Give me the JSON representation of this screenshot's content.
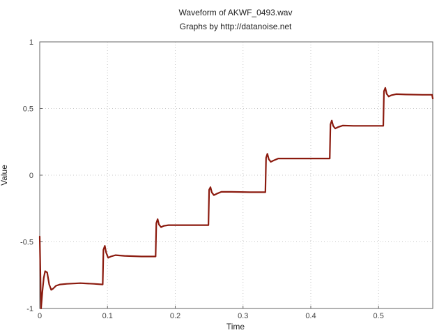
{
  "chart_data": {
    "type": "line",
    "title": "Waveform of AKWF_0493.wav",
    "subtitle": "Graphs by http://datanoise.net",
    "xlabel": "Time",
    "ylabel": "Value",
    "xlim": [
      0,
      0.58
    ],
    "ylim": [
      -1,
      1
    ],
    "grid": true,
    "x_ticks": [
      0,
      0.1,
      0.2,
      0.3,
      0.4,
      0.5
    ],
    "x_tick_labels": [
      "0",
      "0.1",
      "0.2",
      "0.3",
      "0.4",
      "0.5"
    ],
    "y_ticks": [
      -1,
      -0.5,
      0,
      0.5,
      1
    ],
    "y_tick_labels": [
      "-1",
      "-0.5",
      "0",
      "0.5",
      "1"
    ],
    "series": [
      {
        "color": "#8b1a0e",
        "x": [
          0,
          0.002,
          0.004,
          0.006,
          0.008,
          0.011,
          0.014,
          0.017,
          0.02,
          0.024,
          0.03,
          0.04,
          0.06,
          0.08,
          0.093,
          0.094,
          0.096,
          0.098,
          0.101,
          0.105,
          0.112,
          0.125,
          0.15,
          0.171,
          0.172,
          0.174,
          0.176,
          0.179,
          0.183,
          0.19,
          0.205,
          0.23,
          0.249,
          0.25,
          0.252,
          0.254,
          0.257,
          0.261,
          0.268,
          0.283,
          0.31,
          0.333,
          0.334,
          0.336,
          0.338,
          0.341,
          0.345,
          0.352,
          0.368,
          0.4,
          0.428,
          0.429,
          0.431,
          0.433,
          0.436,
          0.44,
          0.447,
          0.463,
          0.49,
          0.507,
          0.508,
          0.51,
          0.512,
          0.515,
          0.519,
          0.526,
          0.54,
          0.565,
          0.579,
          0.58
        ],
        "y": [
          -0.46,
          -1.0,
          -0.87,
          -0.77,
          -0.72,
          -0.73,
          -0.82,
          -0.86,
          -0.85,
          -0.83,
          -0.82,
          -0.815,
          -0.81,
          -0.815,
          -0.82,
          -0.56,
          -0.53,
          -0.58,
          -0.62,
          -0.61,
          -0.6,
          -0.605,
          -0.61,
          -0.61,
          -0.36,
          -0.33,
          -0.37,
          -0.39,
          -0.38,
          -0.375,
          -0.375,
          -0.375,
          -0.375,
          -0.11,
          -0.09,
          -0.13,
          -0.15,
          -0.14,
          -0.125,
          -0.125,
          -0.128,
          -0.128,
          0.13,
          0.16,
          0.12,
          0.1,
          0.11,
          0.125,
          0.125,
          0.125,
          0.125,
          0.38,
          0.41,
          0.37,
          0.35,
          0.36,
          0.372,
          0.37,
          0.37,
          0.37,
          0.63,
          0.655,
          0.61,
          0.59,
          0.6,
          0.608,
          0.605,
          0.603,
          0.603,
          0.575
        ]
      }
    ]
  }
}
